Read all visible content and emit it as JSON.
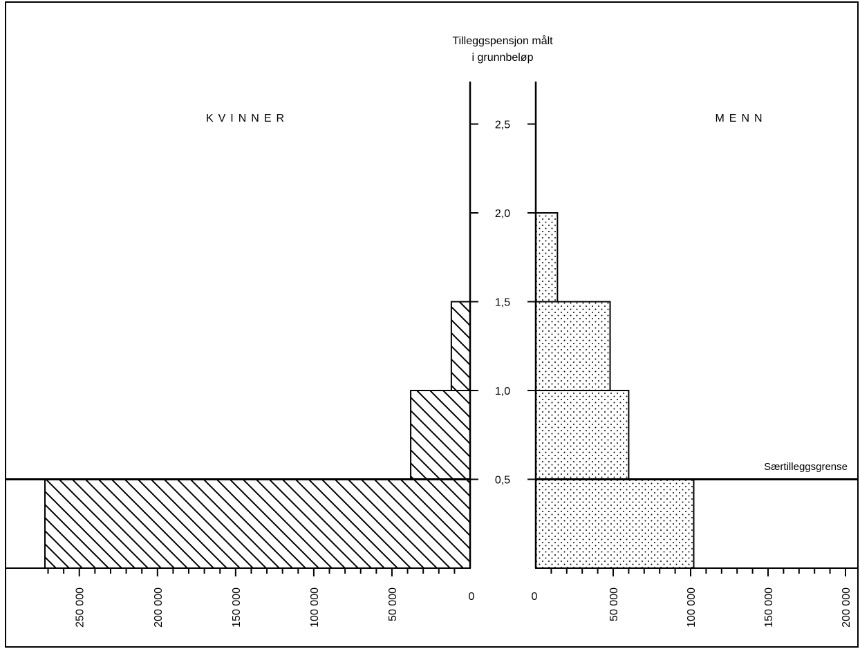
{
  "chart_data": {
    "type": "bar",
    "subtype": "population-pyramid",
    "y_axis_title": [
      "Tilleggspensjon målt",
      "i grunnbeløp"
    ],
    "y_ticks": [
      "0,5",
      "1,0",
      "1,5",
      "2,0",
      "2,5"
    ],
    "y_tick_values": [
      0.5,
      1.0,
      1.5,
      2.0,
      2.5
    ],
    "ylim": [
      0,
      2.75
    ],
    "threshold": {
      "value": 0.5,
      "label": "Særtilleggsgrense"
    },
    "left": {
      "name": "KVINNER",
      "xlim": [
        0,
        275000
      ],
      "zero_label": "0",
      "ticks": [
        50000,
        100000,
        150000,
        200000,
        250000
      ],
      "tick_labels": [
        "50 000",
        "100 000",
        "150 000",
        "200 000",
        "250 000"
      ],
      "bins": [
        {
          "from": 0.0,
          "to": 0.5,
          "value": 272000
        },
        {
          "from": 0.5,
          "to": 1.0,
          "value": 38000
        },
        {
          "from": 1.0,
          "to": 1.5,
          "value": 12000
        }
      ]
    },
    "right": {
      "name": "MENN",
      "xlim": [
        0,
        210000
      ],
      "zero_label": "0",
      "ticks": [
        50000,
        100000,
        150000,
        200000
      ],
      "tick_labels": [
        "50 000",
        "100 000",
        "150 000",
        "200 000"
      ],
      "bins": [
        {
          "from": 0.0,
          "to": 0.5,
          "value": 102000
        },
        {
          "from": 0.5,
          "to": 1.0,
          "value": 60000
        },
        {
          "from": 1.0,
          "to": 1.5,
          "value": 48000
        },
        {
          "from": 1.5,
          "to": 2.0,
          "value": 14000
        }
      ]
    }
  }
}
